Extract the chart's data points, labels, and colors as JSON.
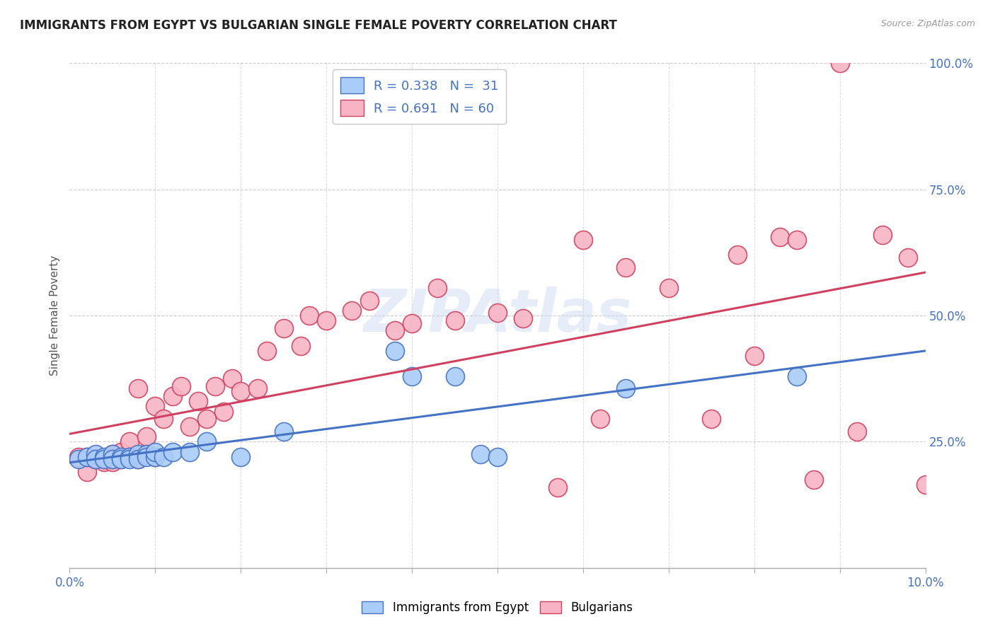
{
  "title": "IMMIGRANTS FROM EGYPT VS BULGARIAN SINGLE FEMALE POVERTY CORRELATION CHART",
  "source": "Source: ZipAtlas.com",
  "ylabel": "Single Female Poverty",
  "legend_label1": "Immigrants from Egypt",
  "legend_label2": "Bulgarians",
  "R1": "0.338",
  "N1": "31",
  "R2": "0.691",
  "N2": "60",
  "color_blue": "#aaccf8",
  "color_blue_line": "#4472c4",
  "color_pink": "#f8b4c4",
  "color_pink_line": "#d04060",
  "watermark_text": "ZIPAtlas",
  "egypt_x": [
    0.001,
    0.002,
    0.003,
    0.003,
    0.004,
    0.004,
    0.005,
    0.005,
    0.006,
    0.006,
    0.007,
    0.007,
    0.008,
    0.008,
    0.009,
    0.009,
    0.01,
    0.01,
    0.011,
    0.012,
    0.014,
    0.016,
    0.02,
    0.025,
    0.038,
    0.04,
    0.045,
    0.048,
    0.05,
    0.065,
    0.085
  ],
  "egypt_y": [
    0.215,
    0.22,
    0.225,
    0.215,
    0.22,
    0.215,
    0.225,
    0.215,
    0.22,
    0.215,
    0.22,
    0.215,
    0.225,
    0.215,
    0.225,
    0.22,
    0.22,
    0.23,
    0.22,
    0.23,
    0.23,
    0.25,
    0.22,
    0.27,
    0.43,
    0.38,
    0.38,
    0.225,
    0.22,
    0.355,
    0.38
  ],
  "bulgarian_x": [
    0.001,
    0.002,
    0.002,
    0.003,
    0.003,
    0.004,
    0.004,
    0.005,
    0.005,
    0.005,
    0.006,
    0.006,
    0.007,
    0.007,
    0.008,
    0.008,
    0.009,
    0.009,
    0.01,
    0.01,
    0.011,
    0.012,
    0.013,
    0.014,
    0.015,
    0.016,
    0.017,
    0.018,
    0.019,
    0.02,
    0.022,
    0.023,
    0.025,
    0.027,
    0.028,
    0.03,
    0.033,
    0.035,
    0.038,
    0.04,
    0.043,
    0.045,
    0.05,
    0.053,
    0.057,
    0.06,
    0.062,
    0.065,
    0.07,
    0.075,
    0.078,
    0.08,
    0.083,
    0.085,
    0.087,
    0.09,
    0.092,
    0.095,
    0.098,
    0.1
  ],
  "bulgarian_y": [
    0.22,
    0.19,
    0.22,
    0.215,
    0.215,
    0.21,
    0.215,
    0.21,
    0.225,
    0.215,
    0.23,
    0.215,
    0.25,
    0.22,
    0.215,
    0.355,
    0.225,
    0.26,
    0.32,
    0.22,
    0.295,
    0.34,
    0.36,
    0.28,
    0.33,
    0.295,
    0.36,
    0.31,
    0.375,
    0.35,
    0.355,
    0.43,
    0.475,
    0.44,
    0.5,
    0.49,
    0.51,
    0.53,
    0.47,
    0.485,
    0.555,
    0.49,
    0.505,
    0.495,
    0.16,
    0.65,
    0.295,
    0.595,
    0.555,
    0.295,
    0.62,
    0.42,
    0.655,
    0.65,
    0.175,
    1.0,
    0.27,
    0.66,
    0.615,
    0.165
  ],
  "xlim": [
    0,
    0.1
  ],
  "ylim": [
    0,
    1.0
  ],
  "xgrid_ticks": [
    0.0,
    0.01,
    0.02,
    0.03,
    0.04,
    0.05,
    0.06,
    0.07,
    0.08,
    0.09,
    0.1
  ],
  "ygrid_ticks": [
    0.25,
    0.5,
    0.75,
    1.0
  ]
}
